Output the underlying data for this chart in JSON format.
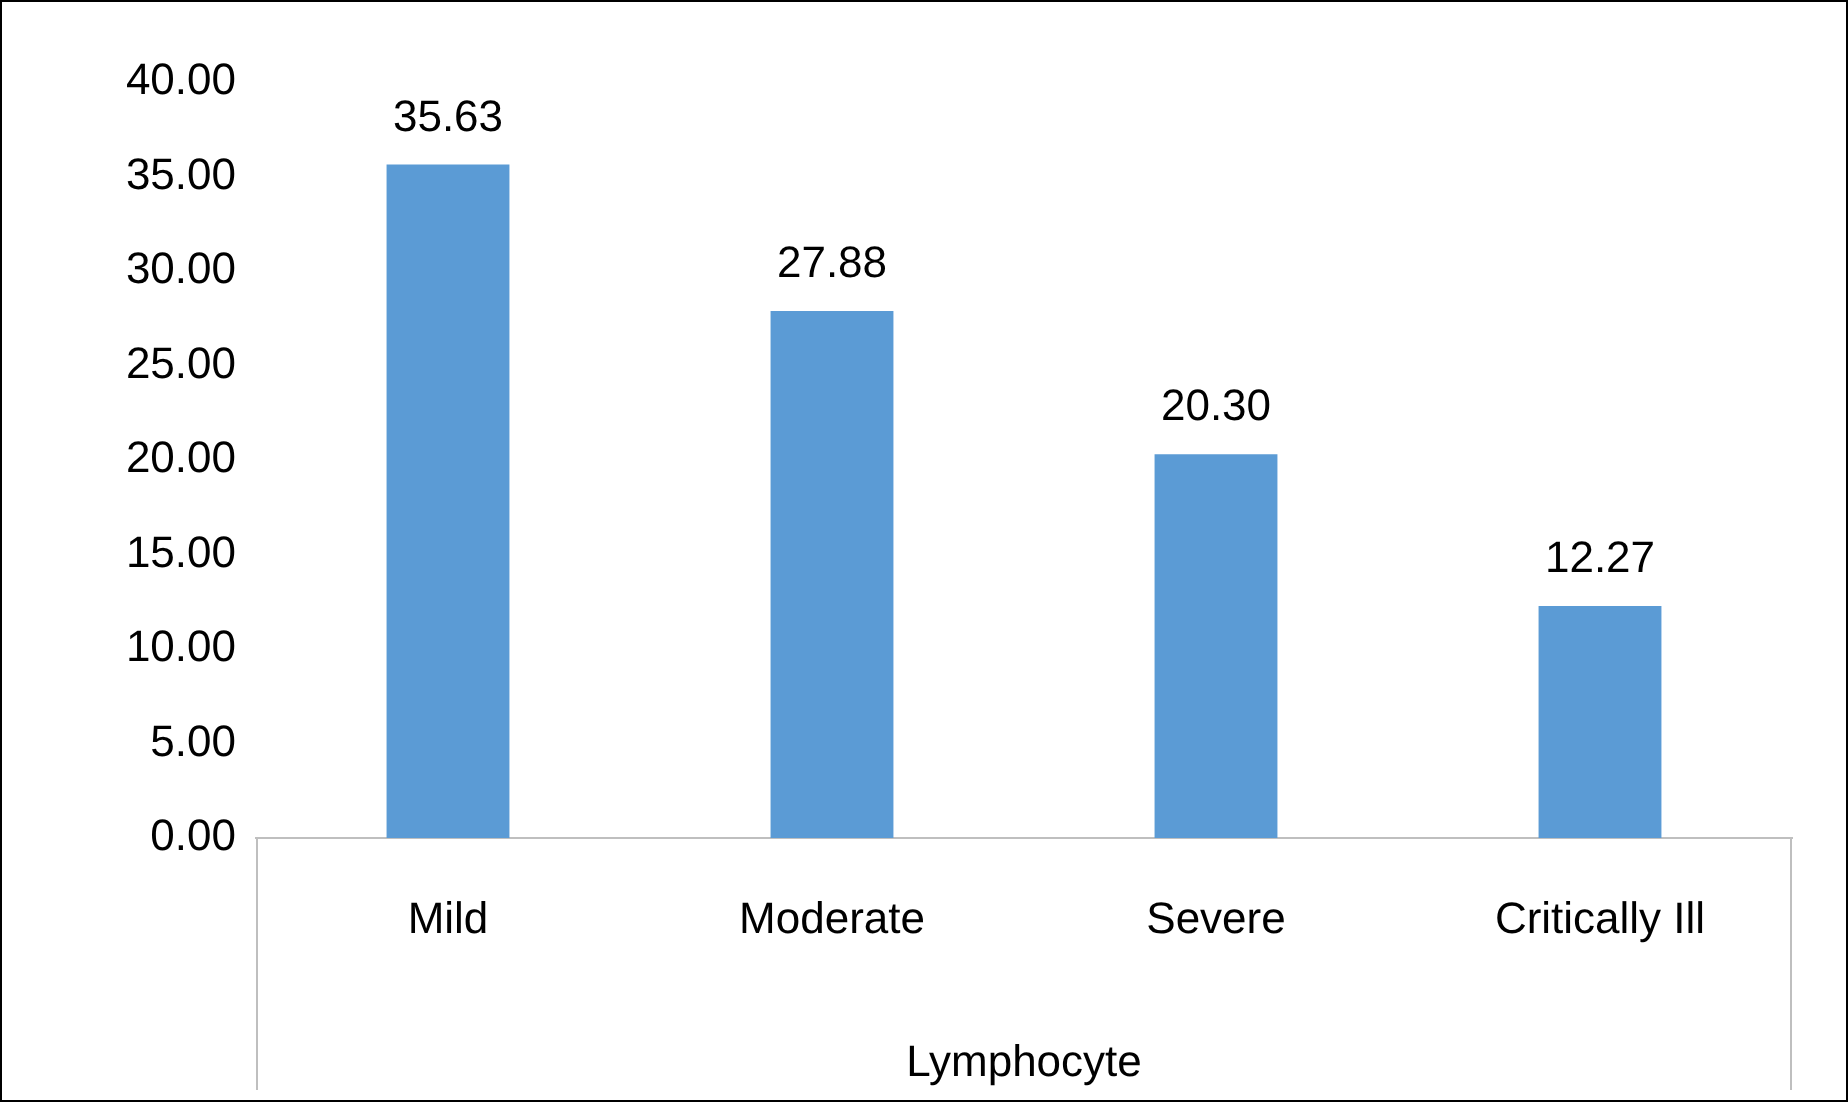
{
  "chart_data": {
    "type": "bar",
    "xlabel": "Lymphocyte",
    "categories": [
      "Mild",
      "Moderate",
      "Severe",
      "Critically Ill"
    ],
    "values": [
      35.63,
      27.88,
      20.3,
      12.27
    ],
    "value_labels": [
      "35.63",
      "27.88",
      "20.30",
      "12.27"
    ],
    "color": "#5b9bd5",
    "ylim": [
      0,
      40
    ],
    "yticks": [
      {
        "value": 0,
        "label": "0.00"
      },
      {
        "value": 5,
        "label": "5.00"
      },
      {
        "value": 10,
        "label": "10.00"
      },
      {
        "value": 15,
        "label": "15.00"
      },
      {
        "value": 20,
        "label": "20.00"
      },
      {
        "value": 25,
        "label": "25.00"
      },
      {
        "value": 30,
        "label": "30.00"
      },
      {
        "value": 35,
        "label": "35.00"
      },
      {
        "value": 40,
        "label": "40.00"
      }
    ],
    "grid": false,
    "legend": false
  }
}
